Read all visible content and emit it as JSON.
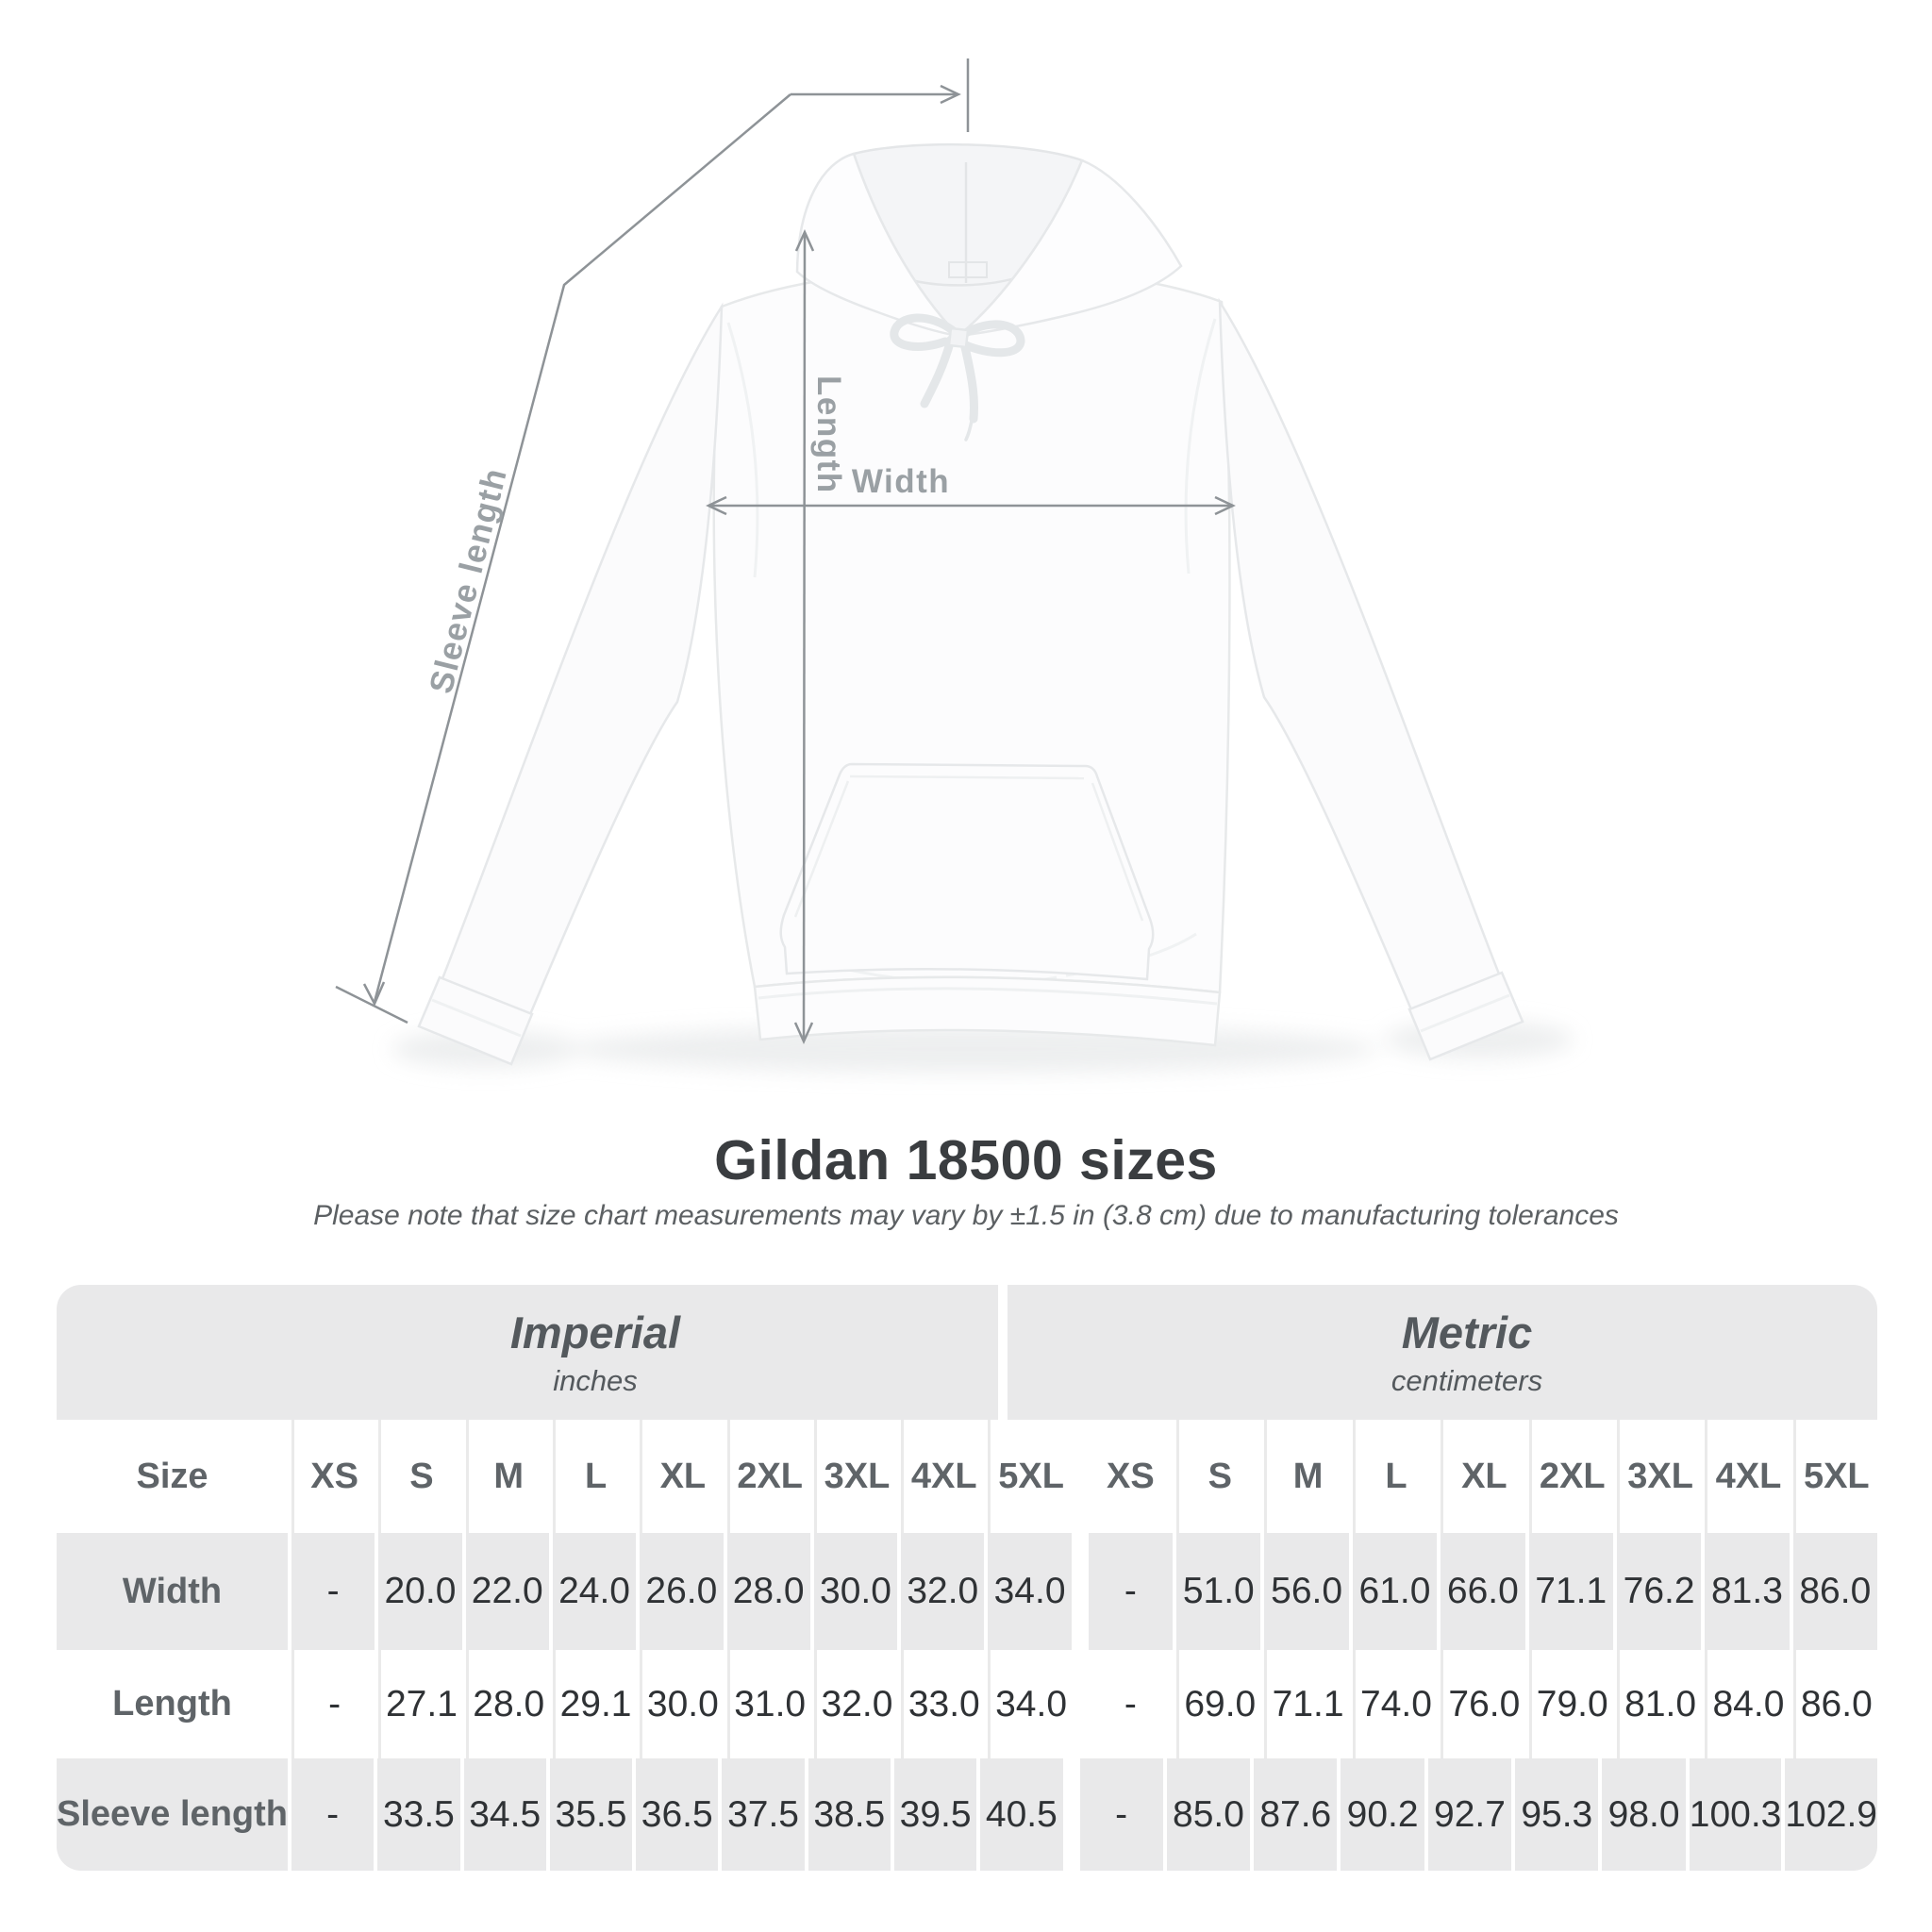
{
  "title": "Gildan 18500 sizes",
  "subtitle": "Please note that size chart measurements may vary by ±1.5 in (3.8 cm) due to manufacturing tolerances",
  "diagram": {
    "length_label": "Length",
    "width_label": "Width",
    "sleeve_label": "Sleeve length"
  },
  "table": {
    "size_header": "Size",
    "groups": [
      {
        "label": "Imperial",
        "unit": "inches"
      },
      {
        "label": "Metric",
        "unit": "centimeters"
      }
    ],
    "sizes": [
      "XS",
      "S",
      "M",
      "L",
      "XL",
      "2XL",
      "3XL",
      "4XL",
      "5XL"
    ],
    "rows": [
      {
        "label": "Width",
        "imperial": [
          "-",
          "20.0",
          "22.0",
          "24.0",
          "26.0",
          "28.0",
          "30.0",
          "32.0",
          "34.0"
        ],
        "metric": [
          "-",
          "51.0",
          "56.0",
          "61.0",
          "66.0",
          "71.1",
          "76.2",
          "81.3",
          "86.0"
        ]
      },
      {
        "label": "Length",
        "imperial": [
          "-",
          "27.1",
          "28.0",
          "29.1",
          "30.0",
          "31.0",
          "32.0",
          "33.0",
          "34.0"
        ],
        "metric": [
          "-",
          "69.0",
          "71.1",
          "74.0",
          "76.0",
          "79.0",
          "81.0",
          "84.0",
          "86.0"
        ]
      },
      {
        "label": "Sleeve length",
        "imperial": [
          "-",
          "33.5",
          "34.5",
          "35.5",
          "36.5",
          "37.5",
          "38.5",
          "39.5",
          "40.5"
        ],
        "metric": [
          "-",
          "85.0",
          "87.6",
          "90.2",
          "92.7",
          "95.3",
          "98.0",
          "100.3",
          "102.9"
        ]
      }
    ]
  },
  "colors": {
    "measure_line": "#8e9397",
    "measure_label": "#9aa0a4",
    "table_band": "#e9e9ea",
    "title_text": "#3a3d40",
    "value_text": "#2f3235"
  }
}
